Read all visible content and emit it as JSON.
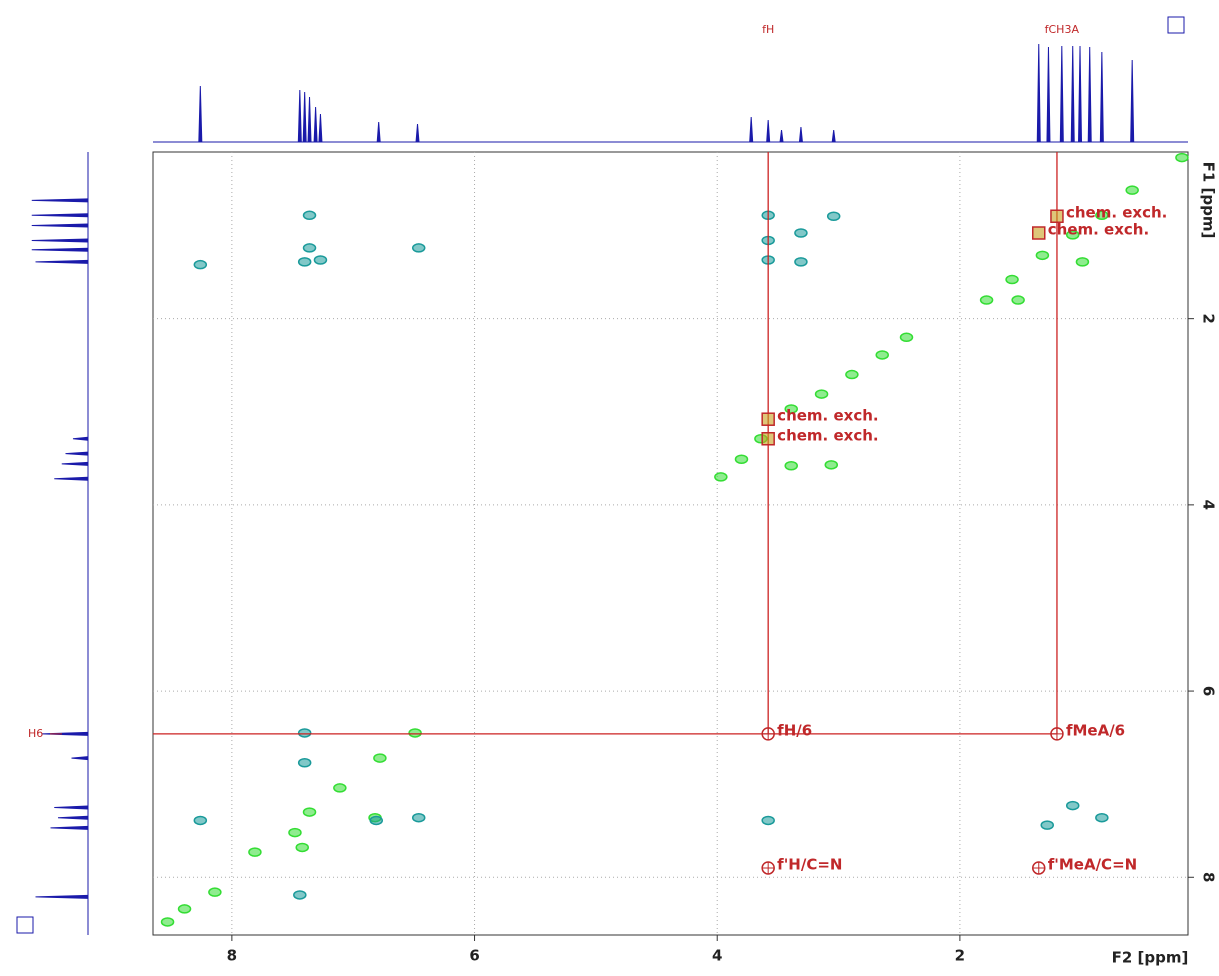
{
  "chart_data": {
    "type": "nmr2d",
    "xlabel": "F2 [ppm]",
    "ylabel": "F1 [ppm]",
    "xlim": [
      8.65,
      0.12
    ],
    "ylim": [
      0.21,
      8.62
    ],
    "xticks": [
      8,
      6,
      4,
      2
    ],
    "yticks": [
      2,
      4,
      6,
      8
    ],
    "grid": true,
    "series": [
      {
        "color": "#33dd33",
        "x": [
          0.17,
          0.58,
          0.83,
          1.07,
          1.32,
          1.57,
          1.78,
          2.44,
          2.64,
          2.89,
          3.14,
          3.39,
          3.64,
          3.8,
          3.97,
          3.39,
          3.06,
          0.99,
          1.52,
          6.49,
          6.78,
          7.11,
          7.36,
          7.48,
          7.81,
          8.14,
          8.39,
          8.53,
          6.82,
          7.42
        ],
        "y": [
          0.27,
          0.62,
          0.89,
          1.1,
          1.32,
          1.58,
          1.8,
          2.2,
          2.39,
          2.6,
          2.81,
          2.97,
          3.29,
          3.51,
          3.7,
          3.58,
          3.57,
          1.39,
          1.8,
          6.45,
          6.72,
          7.04,
          7.3,
          7.52,
          7.73,
          8.16,
          8.34,
          8.48,
          7.36,
          7.68
        ]
      },
      {
        "color": "#1a9a9a",
        "x": [
          3.58,
          3.58,
          3.58,
          3.31,
          3.31,
          3.04,
          7.36,
          7.36,
          7.4,
          7.27,
          6.46,
          8.26,
          7.4,
          7.4,
          6.81,
          6.46,
          8.26,
          7.44,
          3.58,
          1.07,
          1.28,
          0.83
        ],
        "y": [
          0.89,
          1.16,
          1.37,
          1.08,
          1.39,
          0.9,
          0.89,
          1.24,
          1.39,
          1.37,
          1.24,
          1.42,
          6.45,
          6.77,
          7.39,
          7.36,
          7.39,
          8.19,
          7.39,
          7.23,
          7.44,
          7.36
        ]
      }
    ],
    "cursors": {
      "color": "#cc2222",
      "x": [
        3.58,
        1.2
      ],
      "y": [
        6.46
      ]
    },
    "annotation_color": "#c0282a",
    "annotations": [
      {
        "text": "chem. exch.",
        "x": 1.2,
        "y": 0.9,
        "marker": "square"
      },
      {
        "text": "chem. exch.",
        "x": 1.35,
        "y": 1.08,
        "marker": "square"
      },
      {
        "text": "chem. exch.",
        "x": 3.58,
        "y": 3.08,
        "marker": "square"
      },
      {
        "text": "chem. exch.",
        "x": 3.58,
        "y": 3.29,
        "marker": "square"
      },
      {
        "text": "fH/6",
        "x": 3.58,
        "y": 6.46,
        "marker": "circle"
      },
      {
        "text": "fMeA/6",
        "x": 1.2,
        "y": 6.46,
        "marker": "circle"
      },
      {
        "text": "f'H/C=N",
        "x": 3.58,
        "y": 7.9,
        "marker": "circle"
      },
      {
        "text": "f'MeA/C=N",
        "x": 1.35,
        "y": 7.9,
        "marker": "circle"
      }
    ],
    "f2_projection": {
      "color": "#1a1aaa",
      "peaks": [
        8.26,
        7.44,
        7.4,
        7.36,
        7.31,
        7.27,
        6.79,
        6.47,
        3.72,
        3.58,
        3.47,
        3.31,
        3.04,
        1.35,
        1.27,
        1.16,
        1.07,
        1.01,
        0.93,
        0.83,
        0.58
      ],
      "heights": [
        0.56,
        0.52,
        0.5,
        0.45,
        0.35,
        0.28,
        0.2,
        0.18,
        0.25,
        0.22,
        0.12,
        0.15,
        0.12,
        0.98,
        0.95,
        0.96,
        0.96,
        0.96,
        0.95,
        0.9,
        0.82
      ],
      "labels": [
        {
          "text": "fH",
          "x": 3.58
        },
        {
          "text": "fCH3A",
          "x": 1.16
        }
      ]
    },
    "f1_projection": {
      "color": "#1a1aaa",
      "peaks": [
        0.73,
        0.89,
        1.0,
        1.16,
        1.26,
        1.39,
        3.29,
        3.45,
        3.56,
        3.72,
        6.46,
        6.72,
        7.25,
        7.36,
        7.47,
        8.21
      ],
      "heights": [
        0.75,
        0.75,
        0.75,
        0.75,
        0.75,
        0.7,
        0.2,
        0.3,
        0.35,
        0.45,
        0.62,
        0.22,
        0.45,
        0.4,
        0.5,
        0.7
      ],
      "labels": [
        {
          "text": "H6",
          "x": 6.46
        }
      ]
    }
  }
}
